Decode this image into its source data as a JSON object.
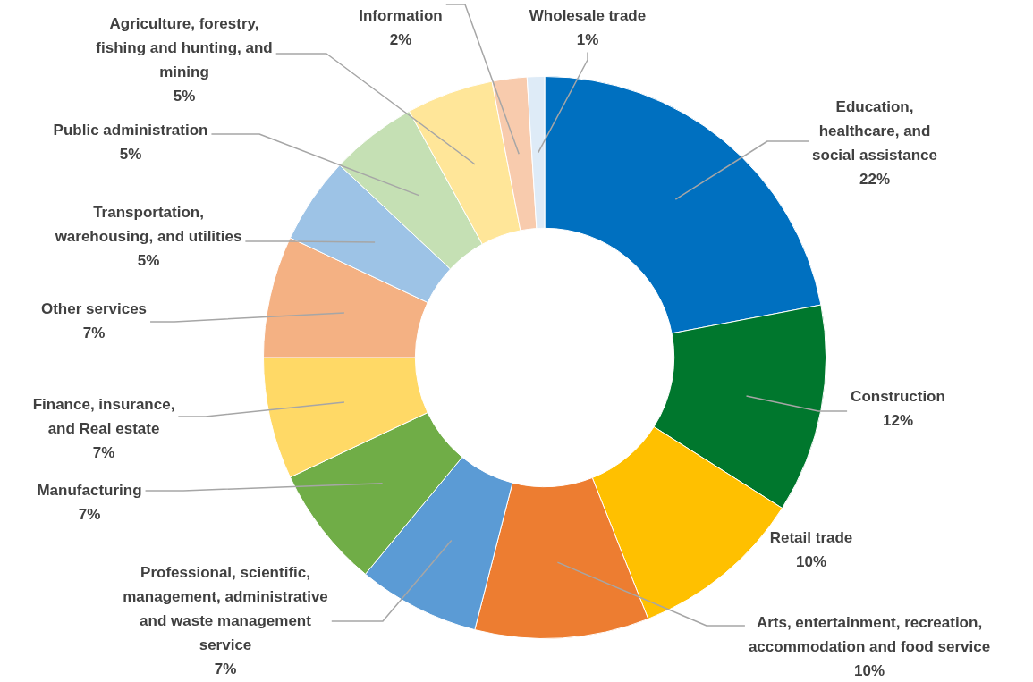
{
  "chart_data": {
    "type": "donut",
    "categories": [
      "Education, healthcare, and social assistance",
      "Construction",
      "Retail trade",
      "Arts, entertainment, recreation, accommodation and food service",
      "Professional, scientific, management, administrative and waste management service",
      "Manufacturing",
      "Finance, insurance, and Real estate",
      "Other services",
      "Transportation, warehousing, and utilities",
      "Public administration",
      "Agriculture, forestry, fishing and hunting, and mining",
      "Information",
      "Wholesale trade"
    ],
    "values": [
      22,
      12,
      10,
      10,
      7,
      7,
      7,
      7,
      5,
      5,
      5,
      2,
      1
    ],
    "value_labels": [
      "22%",
      "12%",
      "10%",
      "10%",
      "7%",
      "7%",
      "7%",
      "7%",
      "5%",
      "5%",
      "5%",
      "2%",
      "1%"
    ],
    "colors": [
      "#0070c0",
      "#00772d",
      "#ffc000",
      "#ed7d31",
      "#5b9bd5",
      "#70ad47",
      "#ffd966",
      "#f4b183",
      "#9dc3e6",
      "#c5e0b4",
      "#ffe699",
      "#f8cbad",
      "#deebf7"
    ],
    "legend": false
  }
}
